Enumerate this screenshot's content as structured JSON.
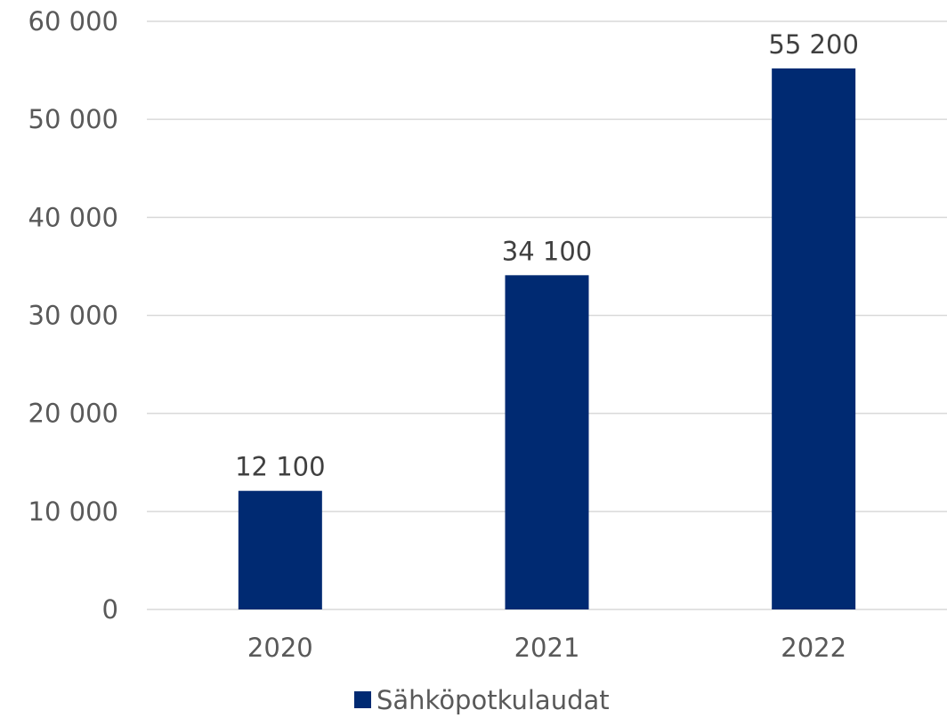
{
  "chart_data": {
    "type": "bar",
    "categories": [
      "2020",
      "2021",
      "2022"
    ],
    "series": [
      {
        "name": "Sähköpotkulaudat",
        "values": [
          12100,
          34100,
          55200
        ],
        "data_labels": [
          "12 100",
          "34 100",
          "55 200"
        ],
        "color": "#002a72"
      }
    ],
    "ylim": [
      0,
      60000
    ],
    "yticks": [
      0,
      10000,
      20000,
      30000,
      40000,
      50000,
      60000
    ],
    "ytick_labels": [
      "0",
      "10 000",
      "20 000",
      "30 000",
      "40 000",
      "50 000",
      "60 000"
    ],
    "grid": true,
    "legend_position": "bottom",
    "title": "",
    "xlabel": "",
    "ylabel": ""
  },
  "legend": {
    "label": "Sähköpotkulaudat",
    "color": "#002a72"
  }
}
